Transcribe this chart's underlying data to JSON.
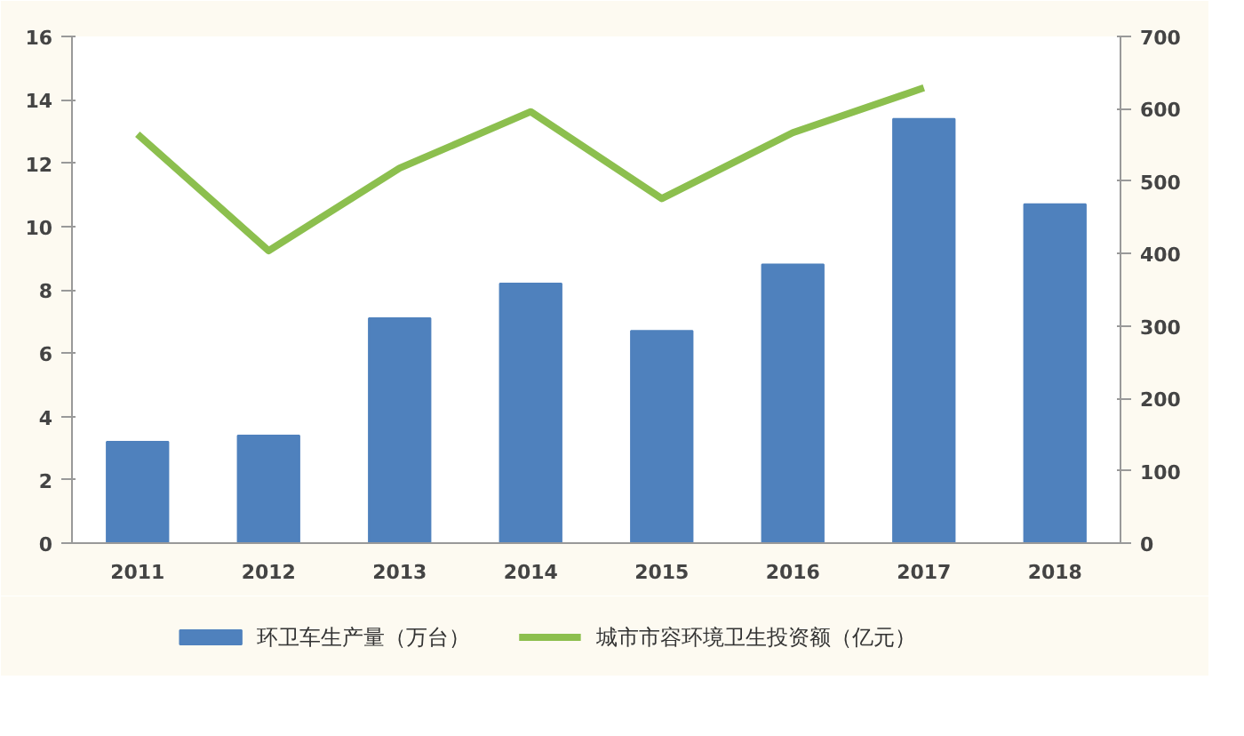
{
  "chart_data": {
    "type": "bar",
    "categories": [
      "2011",
      "2012",
      "2013",
      "2014",
      "2015",
      "2016",
      "2017",
      "2018"
    ],
    "series": [
      {
        "name": "环卫车生产量（万台）",
        "color": "#4f81bd",
        "values": [
          3.2,
          3.4,
          7.1,
          8.2,
          6.7,
          8.8,
          13.4,
          10.7
        ]
      },
      {
        "name": "城市市容环境卫生投资额（亿元）",
        "color": "#8cbf4e",
        "type": "line",
        "axis": "y2",
        "values": [
          565,
          404,
          518,
          596,
          476,
          567,
          629,
          null
        ]
      }
    ],
    "ylim": [
      0,
      16
    ],
    "yticks": [
      0,
      2,
      4,
      6,
      8,
      10,
      12,
      14,
      16
    ],
    "y2lim": [
      0,
      700
    ],
    "y2ticks": [
      0,
      100,
      200,
      300,
      400,
      500,
      600,
      700
    ],
    "grid": false,
    "legend": "bottom"
  }
}
